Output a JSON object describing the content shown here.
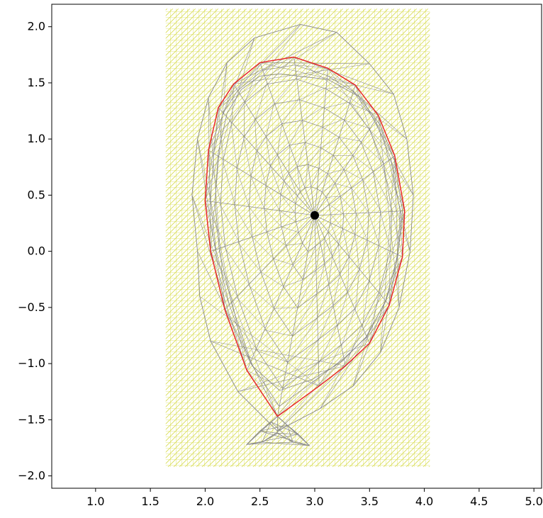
{
  "chart_data": {
    "type": "mesh",
    "title": "",
    "xlabel": "",
    "ylabel": "",
    "xlim": [
      0.6,
      5.07
    ],
    "ylim": [
      -2.11,
      2.2
    ],
    "xticks": [
      1.0,
      1.5,
      2.0,
      2.5,
      3.0,
      3.5,
      4.0,
      4.5,
      5.0
    ],
    "xtick_labels": [
      "1.0",
      "1.5",
      "2.0",
      "2.5",
      "3.0",
      "3.5",
      "4.0",
      "4.5",
      "5.0"
    ],
    "yticks": [
      2.0,
      1.5,
      1.0,
      0.5,
      0.0,
      -0.5,
      -1.0,
      -1.5,
      -2.0
    ],
    "ytick_labels": [
      "2.0",
      "1.5",
      "1.0",
      "0.5",
      "0.0",
      "−0.5",
      "−1.0",
      "−1.5",
      "−2.0"
    ],
    "grid": false,
    "background_grid": {
      "color": "#d7dc4f",
      "x_range": [
        1.64,
        4.05
      ],
      "y_range": [
        -1.92,
        2.16
      ]
    },
    "magnetic_axis": {
      "x": 3.0,
      "y": 0.32,
      "color": "#000000"
    },
    "separatrix": {
      "color": "#e8282b",
      "points": [
        [
          2.66,
          -1.47
        ],
        [
          2.38,
          -1.06
        ],
        [
          2.18,
          -0.52
        ],
        [
          2.05,
          0.0
        ],
        [
          2.0,
          0.45
        ],
        [
          2.03,
          0.9
        ],
        [
          2.12,
          1.28
        ],
        [
          2.26,
          1.49
        ],
        [
          2.5,
          1.68
        ],
        [
          2.81,
          1.73
        ],
        [
          3.12,
          1.63
        ],
        [
          3.37,
          1.48
        ],
        [
          3.58,
          1.21
        ],
        [
          3.73,
          0.85
        ],
        [
          3.82,
          0.36
        ],
        [
          3.8,
          -0.05
        ],
        [
          3.68,
          -0.48
        ],
        [
          3.5,
          -0.82
        ],
        [
          3.28,
          -1.02
        ],
        [
          3.04,
          -1.2
        ],
        [
          2.66,
          -1.47
        ]
      ]
    },
    "outer_boundary": {
      "color": "#888888",
      "points": [
        [
          2.68,
          1.58
        ],
        [
          3.12,
          1.53
        ],
        [
          3.4,
          1.38
        ],
        [
          3.6,
          1.12
        ],
        [
          3.73,
          0.8
        ],
        [
          3.8,
          0.36
        ],
        [
          3.76,
          -0.02
        ],
        [
          3.65,
          -0.44
        ],
        [
          3.47,
          -0.76
        ],
        [
          3.25,
          -0.98
        ],
        [
          2.98,
          -1.14
        ],
        [
          2.68,
          -1.24
        ],
        [
          2.43,
          -1.02
        ],
        [
          2.25,
          -0.5
        ],
        [
          2.13,
          0.0
        ],
        [
          2.09,
          0.44
        ],
        [
          2.12,
          0.88
        ],
        [
          2.2,
          1.23
        ],
        [
          2.33,
          1.44
        ],
        [
          2.5,
          1.56
        ]
      ],
      "wall": [
        [
          1.93,
          0.0
        ],
        [
          1.88,
          0.5
        ],
        [
          1.93,
          1.0
        ],
        [
          2.03,
          1.37
        ],
        [
          2.2,
          1.68
        ],
        [
          2.45,
          1.9
        ],
        [
          2.87,
          2.02
        ],
        [
          3.2,
          1.95
        ],
        [
          3.5,
          1.67
        ],
        [
          3.72,
          1.4
        ],
        [
          3.84,
          1.0
        ],
        [
          3.9,
          0.5
        ],
        [
          3.87,
          0.0
        ],
        [
          3.77,
          -0.5
        ],
        [
          3.6,
          -0.9
        ],
        [
          3.35,
          -1.2
        ],
        [
          3.05,
          -1.4
        ],
        [
          2.66,
          -1.6
        ],
        [
          2.3,
          -1.25
        ],
        [
          2.05,
          -0.8
        ],
        [
          1.95,
          -0.4
        ]
      ]
    },
    "divertor": {
      "color": "#888888",
      "points": [
        [
          2.38,
          -1.72
        ],
        [
          2.5,
          -1.6
        ],
        [
          2.6,
          -1.52
        ],
        [
          2.66,
          -1.47
        ],
        [
          2.75,
          -1.55
        ],
        [
          2.85,
          -1.63
        ],
        [
          2.95,
          -1.73
        ],
        [
          2.8,
          -1.7
        ],
        [
          2.66,
          -1.62
        ],
        [
          2.52,
          -1.7
        ]
      ]
    }
  }
}
